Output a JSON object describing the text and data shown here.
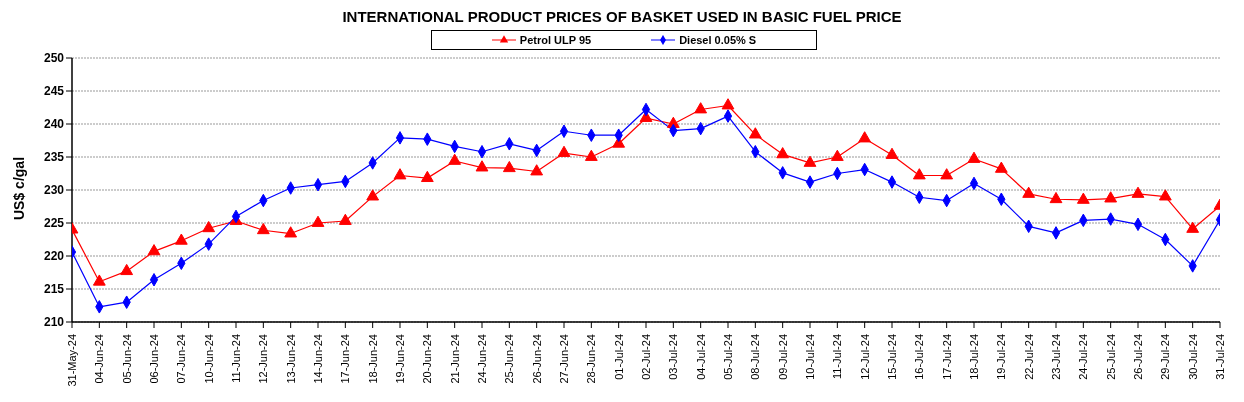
{
  "chart_data": {
    "type": "line",
    "title": "INTERNATIONAL PRODUCT PRICES OF BASKET USED IN BASIC FUEL PRICE",
    "ylabel": "US$ c/gal",
    "categories": [
      "31-May-24",
      "04-Jun-24",
      "05-Jun-24",
      "06-Jun-24",
      "07-Jun-24",
      "10-Jun-24",
      "11-Jun-24",
      "12-Jun-24",
      "13-Jun-24",
      "14-Jun-24",
      "17-Jun-24",
      "18-Jun-24",
      "19-Jun-24",
      "20-Jun-24",
      "21-Jun-24",
      "24-Jun-24",
      "25-Jun-24",
      "26-Jun-24",
      "27-Jun-24",
      "28-Jun-24",
      "01-Jul-24",
      "02-Jul-24",
      "03-Jul-24",
      "04-Jul-24",
      "05-Jul-24",
      "08-Jul-24",
      "09-Jul-24",
      "10-Jul-24",
      "11-Jul-24",
      "12-Jul-24",
      "15-Jul-24",
      "16-Jul-24",
      "17-Jul-24",
      "18-Jul-24",
      "19-Jul-24",
      "22-Jul-24",
      "23-Jul-24",
      "24-Jul-24",
      "25-Jul-24",
      "26-Jul-24",
      "29-Jul-24",
      "30-Jul-24",
      "31-Jul-24"
    ],
    "series": [
      {
        "name": "Petrol ULP 95",
        "color": "#ff0000",
        "marker": "triangle",
        "values": [
          224.0,
          216.1,
          217.7,
          220.7,
          222.3,
          224.2,
          225.3,
          223.9,
          223.4,
          225.0,
          225.3,
          229.0,
          232.2,
          231.8,
          234.4,
          233.4,
          233.3,
          232.8,
          235.6,
          235.0,
          237.0,
          240.9,
          240.0,
          242.2,
          242.8,
          238.4,
          235.4,
          234.1,
          235.0,
          237.8,
          235.3,
          232.2,
          232.2,
          234.7,
          233.2,
          229.4,
          228.6,
          228.5,
          228.7,
          229.4,
          229.0,
          224.1,
          227.6
        ]
      },
      {
        "name": "Diesel 0.05% S",
        "color": "#0000ff",
        "marker": "diamond",
        "values": [
          220.6,
          212.3,
          213.0,
          216.4,
          218.9,
          221.8,
          226.0,
          228.4,
          230.3,
          230.8,
          231.3,
          234.1,
          237.9,
          237.7,
          236.6,
          235.8,
          237.0,
          236.0,
          238.9,
          238.3,
          238.3,
          242.2,
          239.0,
          239.3,
          241.2,
          235.8,
          232.6,
          231.2,
          232.5,
          233.1,
          231.2,
          228.9,
          228.4,
          231.0,
          228.6,
          224.5,
          223.5,
          225.4,
          225.6,
          224.8,
          222.5,
          218.5,
          225.5
        ]
      }
    ],
    "ylim": [
      210,
      250
    ],
    "yticks": [
      210,
      215,
      220,
      225,
      230,
      235,
      240,
      245,
      250
    ],
    "grid": "y",
    "legend": "top",
    "line_style": "solid"
  }
}
